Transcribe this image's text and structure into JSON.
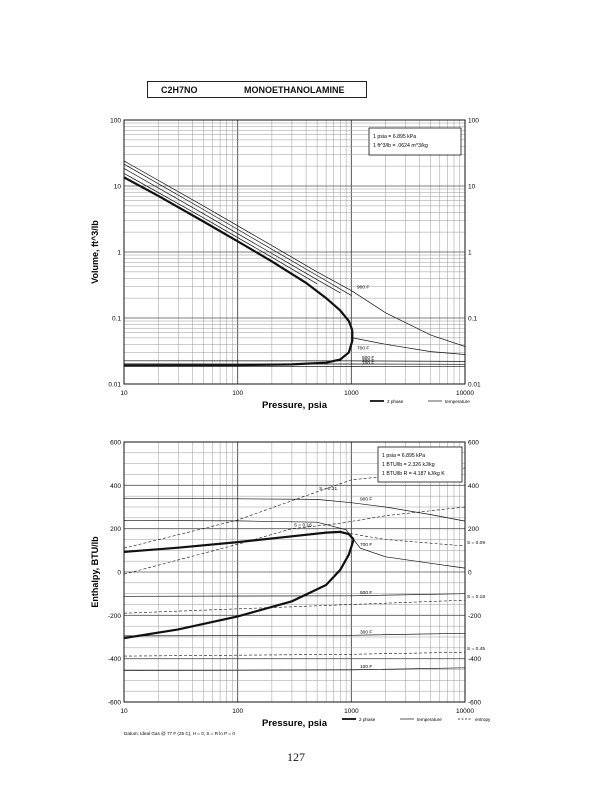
{
  "header": {
    "formula": "C2H7NO",
    "name": "MONOETHANOLAMINE"
  },
  "page_number": "127",
  "chart_data": [
    {
      "type": "line",
      "xlabel": "Pressure,  psia",
      "ylabel": "Volume, ft^3/lb",
      "x_scale": "log",
      "y_scale": "log",
      "xlim": [
        10,
        10000
      ],
      "ylim": [
        0.01,
        100
      ],
      "x_ticks": [
        "10",
        "100",
        "1000",
        "10000"
      ],
      "y_ticks": [
        "0.01",
        "0.1",
        "1",
        "10",
        "100"
      ],
      "grid": true,
      "conversion_note": [
        "1 psia = 6.895 kPa",
        "1 ft^3/lb = .0624 m^3/kg"
      ],
      "legend": [
        "2 phase",
        "temperature"
      ],
      "legend_position": "bottom-right",
      "series": [
        {
          "name": "2 phase",
          "role": "two-phase-vapor",
          "points": [
            [
              10,
              13.5
            ],
            [
              20,
              7.1
            ],
            [
              50,
              2.9
            ],
            [
              100,
              1.45
            ],
            [
              200,
              0.72
            ],
            [
              400,
              0.34
            ],
            [
              600,
              0.2
            ],
            [
              800,
              0.13
            ],
            [
              950,
              0.09
            ],
            [
              1020,
              0.065
            ]
          ]
        },
        {
          "name": "2 phase",
          "role": "two-phase-liquid",
          "points": [
            [
              10,
              0.0192
            ],
            [
              100,
              0.0193
            ],
            [
              300,
              0.0198
            ],
            [
              600,
              0.021
            ],
            [
              800,
              0.0235
            ],
            [
              950,
              0.03
            ],
            [
              1020,
              0.045
            ],
            [
              1020,
              0.065
            ]
          ]
        },
        {
          "name": "temperature",
          "label": "",
          "points": [
            [
              10,
              15.5
            ],
            [
              50,
              3.3
            ],
            [
              200,
              0.83
            ],
            [
              500,
              0.33
            ]
          ]
        },
        {
          "name": "temperature",
          "label": "",
          "points": [
            [
              10,
              18.5
            ],
            [
              50,
              3.8
            ],
            [
              200,
              0.95
            ],
            [
              500,
              0.38
            ],
            [
              800,
              0.24
            ]
          ]
        },
        {
          "name": "temperature",
          "label": "",
          "points": [
            [
              10,
              21.5
            ],
            [
              50,
              4.4
            ],
            [
              200,
              1.1
            ],
            [
              500,
              0.44
            ],
            [
              1000,
              0.22
            ]
          ]
        },
        {
          "name": "temperature",
          "label": "900 F",
          "points": [
            [
              10,
              24
            ],
            [
              50,
              5
            ],
            [
              200,
              1.25
            ],
            [
              500,
              0.5
            ],
            [
              1000,
              0.26
            ],
            [
              2000,
              0.12
            ],
            [
              5000,
              0.055
            ],
            [
              10000,
              0.037
            ]
          ]
        },
        {
          "name": "temperature",
          "label": "700 F",
          "points": [
            [
              1030,
              0.05
            ],
            [
              2000,
              0.04
            ],
            [
              5000,
              0.031
            ],
            [
              10000,
              0.028
            ]
          ]
        },
        {
          "name": "temperature",
          "label": "500 F",
          "points": [
            [
              10,
              0.0225
            ],
            [
              1000,
              0.0224
            ],
            [
              10000,
              0.022
            ]
          ]
        },
        {
          "name": "temperature",
          "label": "300 F",
          "points": [
            [
              10,
              0.0202
            ],
            [
              1000,
              0.0201
            ],
            [
              10000,
              0.0199
            ]
          ]
        },
        {
          "name": "temperature",
          "label": "100 F",
          "points": [
            [
              10,
              0.0185
            ],
            [
              1000,
              0.0184
            ],
            [
              10000,
              0.0183
            ]
          ]
        }
      ]
    },
    {
      "type": "line",
      "xlabel": "Pressure,  psia",
      "ylabel": "Enthalpy, BTU/lb",
      "x_scale": "log",
      "y_scale": "linear",
      "xlim": [
        10,
        10000
      ],
      "ylim": [
        -600,
        600
      ],
      "x_ticks": [
        "10",
        "100",
        "1000",
        "10000"
      ],
      "y_ticks": [
        "-600",
        "-400",
        "-200",
        "0",
        "200",
        "400",
        "600"
      ],
      "grid": true,
      "conversion_note": [
        "1 psia = 6.895 kPa",
        "1 BTU/lb = 2.326 kJ/kg",
        "1 BTU/lb R = 4.187 kJ/kg K"
      ],
      "legend": [
        "2 phase",
        "temperature",
        "entropy"
      ],
      "legend_position": "bottom-right",
      "reference_note": "Datum: Ideal Gas @ 77 F (25 C),  H = 0,  S = R ln P = 0",
      "series": [
        {
          "name": "2 phase",
          "role": "two-phase-vapor",
          "points": [
            [
              10,
              93
            ],
            [
              30,
              112
            ],
            [
              100,
              138
            ],
            [
              300,
              165
            ],
            [
              600,
              182
            ],
            [
              800,
              185
            ],
            [
              950,
              175
            ],
            [
              1050,
              150
            ]
          ]
        },
        {
          "name": "2 phase",
          "role": "two-phase-liquid",
          "points": [
            [
              10,
              -305
            ],
            [
              30,
              -265
            ],
            [
              100,
              -205
            ],
            [
              300,
              -135
            ],
            [
              600,
              -60
            ],
            [
              800,
              10
            ],
            [
              950,
              80
            ],
            [
              1050,
              150
            ]
          ]
        },
        {
          "name": "temperature",
          "label": "900 F",
          "points": [
            [
              10,
              340
            ],
            [
              100,
              338
            ],
            [
              500,
              335
            ],
            [
              1000,
              320
            ],
            [
              2000,
              300
            ],
            [
              5000,
              265
            ],
            [
              10000,
              235
            ]
          ]
        },
        {
          "name": "temperature",
          "label": "700 F",
          "points": [
            [
              10,
              238
            ],
            [
              100,
              236
            ],
            [
              500,
              230
            ],
            [
              900,
              195
            ],
            [
              1200,
              110
            ],
            [
              2000,
              70
            ],
            [
              5000,
              40
            ],
            [
              10000,
              18
            ]
          ]
        },
        {
          "name": "temperature",
          "label": "500 F",
          "points": [
            [
              10,
              -112
            ],
            [
              1000,
              -110
            ],
            [
              10000,
              -100
            ]
          ]
        },
        {
          "name": "temperature",
          "label": "300 F",
          "points": [
            [
              10,
              -295
            ],
            [
              1000,
              -292
            ],
            [
              10000,
              -283
            ]
          ]
        },
        {
          "name": "temperature",
          "label": "100 F",
          "points": [
            [
              10,
              -455
            ],
            [
              1000,
              -452
            ],
            [
              10000,
              -442
            ]
          ]
        },
        {
          "name": "entropy",
          "label": "S = 0.31",
          "points": [
            [
              10,
              110
            ],
            [
              100,
              240
            ],
            [
              500,
              370
            ],
            [
              1000,
              425
            ],
            [
              10000,
              480
            ]
          ]
        },
        {
          "name": "entropy",
          "label": "S = 0.16",
          "points": [
            [
              10,
              -10
            ],
            [
              100,
              128
            ],
            [
              300,
              200
            ],
            [
              800,
              225
            ],
            [
              2000,
              260
            ],
            [
              10000,
              300
            ]
          ]
        },
        {
          "name": "entropy",
          "label": "S = 0.09",
          "points": [
            [
              800,
              185
            ],
            [
              2000,
              150
            ],
            [
              10000,
              120
            ]
          ]
        },
        {
          "name": "entropy",
          "label": "S = 0.18",
          "points": [
            [
              10,
              -190
            ],
            [
              1000,
              -150
            ],
            [
              10000,
              -130
            ]
          ]
        },
        {
          "name": "entropy",
          "label": "S = 0.45",
          "points": [
            [
              10,
              -388
            ],
            [
              1000,
              -380
            ],
            [
              10000,
              -370
            ]
          ]
        }
      ]
    }
  ]
}
